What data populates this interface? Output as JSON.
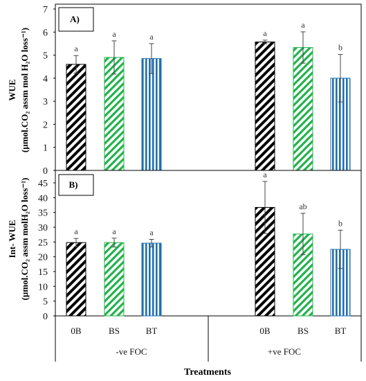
{
  "chart_data": [
    {
      "panel_label": "A)",
      "type": "bar",
      "ylabel_line1": "WUE",
      "ylabel_line2": "(µmol.CO₂ assm mol H₂O loss⁻¹)",
      "ylim": [
        0,
        7
      ],
      "yticks": [
        "0",
        "1",
        "2",
        "3",
        "4",
        "5",
        "6",
        "7"
      ],
      "categories": [
        "0B",
        "BS",
        "BT",
        "0B",
        "BS",
        "BT"
      ],
      "groups": [
        "-ve FOC",
        "+ve FOC"
      ],
      "values": [
        4.6,
        4.9,
        4.85,
        5.57,
        5.33,
        4.0
      ],
      "errors": [
        0.38,
        0.72,
        0.65,
        0.08,
        0.68,
        1.03
      ],
      "letters": [
        "a",
        "a",
        "a",
        "a",
        "a",
        "b"
      ]
    },
    {
      "panel_label": "B)",
      "type": "bar",
      "ylabel_line1": "Int- WUE",
      "ylabel_line2": "(µmol.CO₂ assm molH₂O loss⁻¹)",
      "ylim": [
        0,
        45
      ],
      "yticks": [
        "0",
        "5",
        "10",
        "15",
        "20",
        "25",
        "30",
        "35",
        "40",
        "45"
      ],
      "categories": [
        "0B",
        "BS",
        "BT",
        "0B",
        "BS",
        "BT"
      ],
      "groups": [
        "-ve FOC",
        "+ve FOC"
      ],
      "values": [
        24.8,
        24.8,
        24.6,
        36.7,
        27.7,
        22.5
      ],
      "errors": [
        1.4,
        1.5,
        1.3,
        8.8,
        7.0,
        6.5
      ],
      "letters": [
        "a",
        "a",
        "a",
        "a",
        "ab",
        "b"
      ]
    }
  ],
  "xlabel": "Treatments",
  "colors": {
    "0B": "#000000",
    "BS": "#22b24c",
    "BT": "#1f6fb2"
  },
  "patterns": {
    "0B": "diagonal-stripes",
    "BS": "diagonal-stripes",
    "BT": "vertical-stripes"
  }
}
